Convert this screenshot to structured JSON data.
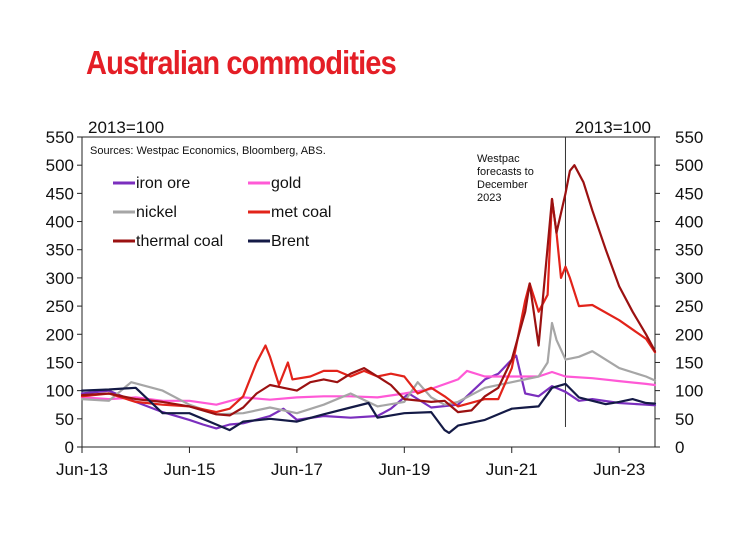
{
  "title": "Australian commodities",
  "chart_data": {
    "type": "line",
    "left_axis_label": "2013=100",
    "right_axis_label": "2013=100",
    "source": "Sources: Westpac Economics, Bloomberg, ABS.",
    "annotation": [
      "Westpac",
      "forecasts to",
      "December",
      "2023"
    ],
    "ylim": [
      0,
      550
    ],
    "yticks": [
      0,
      50,
      100,
      150,
      200,
      250,
      300,
      350,
      400,
      450,
      500,
      550
    ],
    "xlim": [
      "2013-06",
      "2024-02"
    ],
    "xticks": [
      {
        "date": "2013-06",
        "label": "Jun-13"
      },
      {
        "date": "2015-06",
        "label": "Jun-15"
      },
      {
        "date": "2017-06",
        "label": "Jun-17"
      },
      {
        "date": "2019-06",
        "label": "Jun-19"
      },
      {
        "date": "2021-06",
        "label": "Jun-21"
      },
      {
        "date": "2023-06",
        "label": "Jun-23"
      }
    ],
    "forecast_start": "2022-06",
    "legend_position": "top-left",
    "series": [
      {
        "name": "iron ore",
        "color": "#7b2fbe",
        "points": [
          [
            "2013-06",
            95
          ],
          [
            "2013-12",
            100
          ],
          [
            "2014-06",
            80
          ],
          [
            "2014-12",
            62
          ],
          [
            "2015-06",
            48
          ],
          [
            "2015-09",
            40
          ],
          [
            "2015-12",
            33
          ],
          [
            "2016-03",
            40
          ],
          [
            "2016-06",
            42
          ],
          [
            "2016-12",
            55
          ],
          [
            "2017-03",
            68
          ],
          [
            "2017-06",
            48
          ],
          [
            "2017-12",
            55
          ],
          [
            "2018-06",
            52
          ],
          [
            "2018-12",
            55
          ],
          [
            "2019-03",
            68
          ],
          [
            "2019-07",
            95
          ],
          [
            "2019-12",
            70
          ],
          [
            "2020-06",
            75
          ],
          [
            "2020-12",
            120
          ],
          [
            "2021-03",
            130
          ],
          [
            "2021-06",
            155
          ],
          [
            "2021-07",
            162
          ],
          [
            "2021-09",
            95
          ],
          [
            "2021-12",
            90
          ],
          [
            "2022-03",
            108
          ],
          [
            "2022-06",
            98
          ],
          [
            "2022-09",
            82
          ],
          [
            "2022-12",
            85
          ],
          [
            "2023-06",
            78
          ],
          [
            "2023-12",
            75
          ],
          [
            "2024-02",
            74
          ]
        ]
      },
      {
        "name": "gold",
        "color": "#ff59d6",
        "points": [
          [
            "2013-06",
            88
          ],
          [
            "2013-12",
            85
          ],
          [
            "2014-06",
            88
          ],
          [
            "2014-12",
            82
          ],
          [
            "2015-06",
            82
          ],
          [
            "2015-12",
            75
          ],
          [
            "2016-06",
            88
          ],
          [
            "2016-12",
            84
          ],
          [
            "2017-06",
            88
          ],
          [
            "2017-12",
            90
          ],
          [
            "2018-06",
            90
          ],
          [
            "2018-12",
            88
          ],
          [
            "2019-06",
            95
          ],
          [
            "2019-12",
            103
          ],
          [
            "2020-06",
            120
          ],
          [
            "2020-08",
            135
          ],
          [
            "2020-12",
            125
          ],
          [
            "2021-06",
            125
          ],
          [
            "2021-12",
            125
          ],
          [
            "2022-03",
            133
          ],
          [
            "2022-06",
            125
          ],
          [
            "2022-12",
            122
          ],
          [
            "2023-06",
            117
          ],
          [
            "2023-12",
            112
          ],
          [
            "2024-02",
            110
          ]
        ]
      },
      {
        "name": "nickel",
        "color": "#a6a6a6",
        "points": [
          [
            "2013-06",
            85
          ],
          [
            "2013-12",
            82
          ],
          [
            "2014-05",
            115
          ],
          [
            "2014-12",
            100
          ],
          [
            "2015-06",
            75
          ],
          [
            "2015-12",
            58
          ],
          [
            "2016-06",
            60
          ],
          [
            "2016-12",
            70
          ],
          [
            "2017-06",
            60
          ],
          [
            "2017-12",
            75
          ],
          [
            "2018-06",
            95
          ],
          [
            "2018-12",
            72
          ],
          [
            "2019-06",
            80
          ],
          [
            "2019-09",
            115
          ],
          [
            "2019-12",
            88
          ],
          [
            "2020-03",
            75
          ],
          [
            "2020-06",
            80
          ],
          [
            "2020-12",
            105
          ],
          [
            "2021-06",
            115
          ],
          [
            "2021-12",
            125
          ],
          [
            "2022-02",
            150
          ],
          [
            "2022-03",
            220
          ],
          [
            "2022-04",
            190
          ],
          [
            "2022-06",
            155
          ],
          [
            "2022-09",
            160
          ],
          [
            "2022-12",
            170
          ],
          [
            "2023-06",
            140
          ],
          [
            "2023-12",
            125
          ],
          [
            "2024-02",
            118
          ]
        ]
      },
      {
        "name": "met coal",
        "color": "#e2231a",
        "points": [
          [
            "2013-06",
            90
          ],
          [
            "2013-12",
            95
          ],
          [
            "2014-06",
            80
          ],
          [
            "2014-12",
            75
          ],
          [
            "2015-06",
            72
          ],
          [
            "2015-12",
            62
          ],
          [
            "2016-03",
            68
          ],
          [
            "2016-06",
            90
          ],
          [
            "2016-09",
            150
          ],
          [
            "2016-11",
            180
          ],
          [
            "2016-12",
            160
          ],
          [
            "2017-02",
            110
          ],
          [
            "2017-04",
            150
          ],
          [
            "2017-05",
            120
          ],
          [
            "2017-09",
            125
          ],
          [
            "2017-12",
            135
          ],
          [
            "2018-03",
            135
          ],
          [
            "2018-06",
            125
          ],
          [
            "2018-09",
            135
          ],
          [
            "2018-12",
            125
          ],
          [
            "2019-03",
            130
          ],
          [
            "2019-06",
            125
          ],
          [
            "2019-09",
            95
          ],
          [
            "2019-12",
            105
          ],
          [
            "2020-03",
            90
          ],
          [
            "2020-06",
            72
          ],
          [
            "2020-12",
            85
          ],
          [
            "2021-03",
            85
          ],
          [
            "2021-06",
            140
          ],
          [
            "2021-09",
            260
          ],
          [
            "2021-10",
            290
          ],
          [
            "2021-12",
            240
          ],
          [
            "2022-02",
            270
          ],
          [
            "2022-03",
            440
          ],
          [
            "2022-04",
            380
          ],
          [
            "2022-05",
            300
          ],
          [
            "2022-06",
            320
          ],
          [
            "2022-07",
            300
          ],
          [
            "2022-09",
            250
          ],
          [
            "2022-12",
            252
          ],
          [
            "2023-06",
            225
          ],
          [
            "2023-12",
            192
          ],
          [
            "2024-02",
            168
          ]
        ]
      },
      {
        "name": "thermal coal",
        "color": "#9b1111",
        "points": [
          [
            "2013-06",
            92
          ],
          [
            "2013-12",
            95
          ],
          [
            "2014-06",
            85
          ],
          [
            "2014-12",
            80
          ],
          [
            "2015-06",
            72
          ],
          [
            "2015-12",
            58
          ],
          [
            "2016-03",
            56
          ],
          [
            "2016-06",
            70
          ],
          [
            "2016-09",
            95
          ],
          [
            "2016-12",
            110
          ],
          [
            "2017-03",
            105
          ],
          [
            "2017-06",
            100
          ],
          [
            "2017-09",
            115
          ],
          [
            "2017-12",
            120
          ],
          [
            "2018-03",
            115
          ],
          [
            "2018-06",
            130
          ],
          [
            "2018-09",
            140
          ],
          [
            "2018-12",
            125
          ],
          [
            "2019-03",
            110
          ],
          [
            "2019-06",
            85
          ],
          [
            "2019-12",
            80
          ],
          [
            "2020-03",
            82
          ],
          [
            "2020-06",
            62
          ],
          [
            "2020-09",
            65
          ],
          [
            "2020-12",
            90
          ],
          [
            "2021-03",
            105
          ],
          [
            "2021-06",
            155
          ],
          [
            "2021-09",
            240
          ],
          [
            "2021-10",
            290
          ],
          [
            "2021-12",
            180
          ],
          [
            "2022-03",
            440
          ],
          [
            "2022-04",
            380
          ],
          [
            "2022-06",
            450
          ],
          [
            "2022-07",
            490
          ],
          [
            "2022-08",
            500
          ],
          [
            "2022-10",
            470
          ],
          [
            "2022-12",
            420
          ],
          [
            "2023-03",
            350
          ],
          [
            "2023-06",
            285
          ],
          [
            "2023-09",
            240
          ],
          [
            "2023-12",
            200
          ],
          [
            "2024-02",
            170
          ]
        ]
      },
      {
        "name": "Brent",
        "color": "#141a46",
        "points": [
          [
            "2013-06",
            100
          ],
          [
            "2013-12",
            102
          ],
          [
            "2014-06",
            105
          ],
          [
            "2014-12",
            60
          ],
          [
            "2015-06",
            60
          ],
          [
            "2015-12",
            40
          ],
          [
            "2016-03",
            30
          ],
          [
            "2016-06",
            45
          ],
          [
            "2016-12",
            50
          ],
          [
            "2017-06",
            45
          ],
          [
            "2017-12",
            58
          ],
          [
            "2018-06",
            70
          ],
          [
            "2018-10",
            78
          ],
          [
            "2018-12",
            52
          ],
          [
            "2019-06",
            60
          ],
          [
            "2019-12",
            62
          ],
          [
            "2020-03",
            30
          ],
          [
            "2020-04",
            25
          ],
          [
            "2020-06",
            38
          ],
          [
            "2020-12",
            48
          ],
          [
            "2021-06",
            68
          ],
          [
            "2021-09",
            70
          ],
          [
            "2021-12",
            72
          ],
          [
            "2022-03",
            105
          ],
          [
            "2022-06",
            112
          ],
          [
            "2022-09",
            88
          ],
          [
            "2022-12",
            82
          ],
          [
            "2023-03",
            76
          ],
          [
            "2023-06",
            80
          ],
          [
            "2023-09",
            85
          ],
          [
            "2023-12",
            78
          ],
          [
            "2024-02",
            77
          ]
        ]
      }
    ]
  }
}
